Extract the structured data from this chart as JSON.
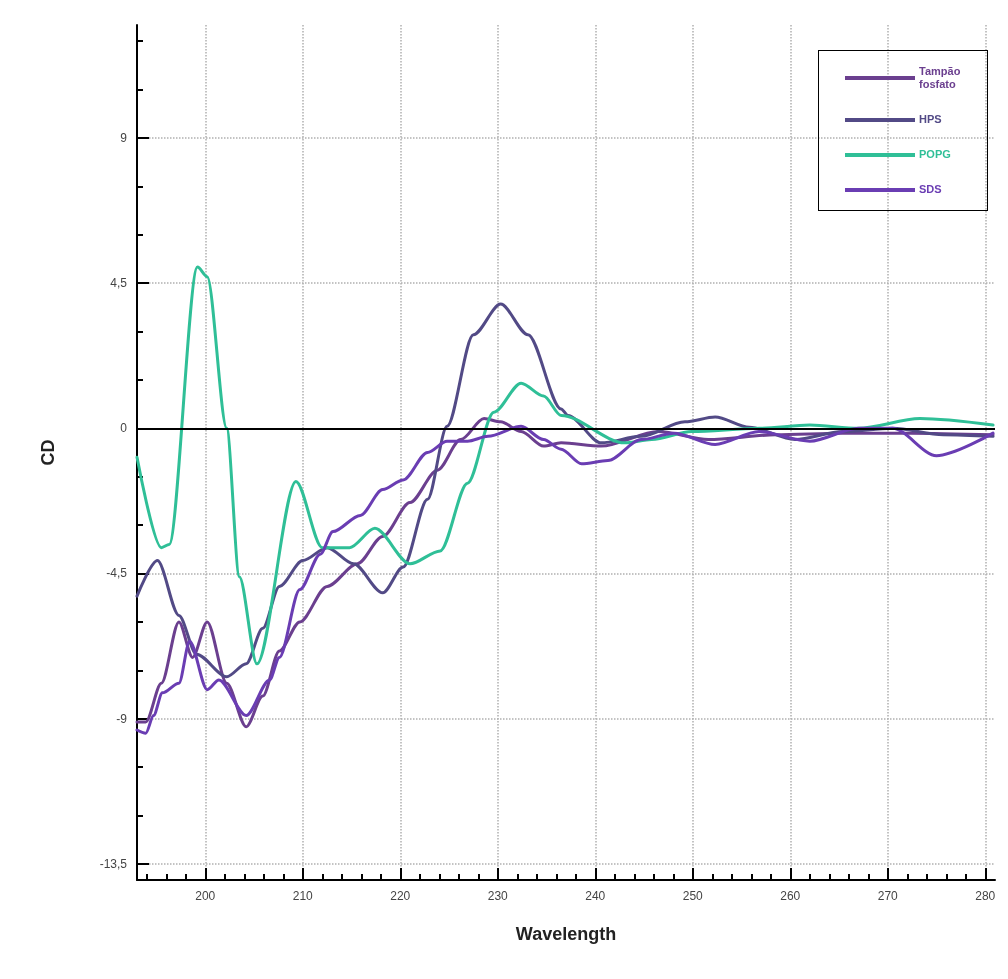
{
  "chart_data": {
    "type": "line",
    "xlabel": "Wavelength",
    "ylabel": "CD",
    "xlim": [
      193,
      281
    ],
    "ylim": [
      -14,
      12.5
    ],
    "xticks": [
      {
        "value": 194,
        "label": null
      },
      {
        "value": 196,
        "label": null
      },
      {
        "value": 198,
        "label": null
      },
      200,
      {
        "value": 202,
        "label": null
      },
      {
        "value": 204,
        "label": null
      },
      {
        "value": 206,
        "label": null
      },
      {
        "value": 208,
        "label": null
      },
      210,
      {
        "value": 212,
        "label": null
      },
      {
        "value": 214,
        "label": null
      },
      {
        "value": 216,
        "label": null
      },
      {
        "value": 218,
        "label": null
      },
      220,
      {
        "value": 222,
        "label": null
      },
      {
        "value": 224,
        "label": null
      },
      {
        "value": 226,
        "label": null
      },
      {
        "value": 228,
        "label": null
      },
      230,
      {
        "value": 232,
        "label": null
      },
      {
        "value": 234,
        "label": null
      },
      {
        "value": 236,
        "label": null
      },
      {
        "value": 238,
        "label": null
      },
      240,
      {
        "value": 242,
        "label": null
      },
      {
        "value": 244,
        "label": null
      },
      {
        "value": 246,
        "label": null
      },
      {
        "value": 248,
        "label": null
      },
      250,
      {
        "value": 252,
        "label": null
      },
      {
        "value": 254,
        "label": null
      },
      {
        "value": 256,
        "label": null
      },
      {
        "value": 258,
        "label": null
      },
      260,
      {
        "value": 262,
        "label": null
      },
      {
        "value": 264,
        "label": null
      },
      {
        "value": 266,
        "label": null
      },
      {
        "value": 268,
        "label": null
      },
      270,
      {
        "value": 272,
        "label": null
      },
      {
        "value": 274,
        "label": null
      },
      {
        "value": 276,
        "label": null
      },
      {
        "value": 278,
        "label": null
      },
      280
    ],
    "yticks": [
      {
        "value": -13.5,
        "label": "-13,5"
      },
      {
        "value": -12,
        "label": null
      },
      {
        "value": -10.5,
        "label": null
      },
      -9,
      {
        "value": -7.5,
        "label": null
      },
      {
        "value": -6,
        "label": null
      },
      {
        "value": -4.5,
        "label": "-4,5"
      },
      {
        "value": -3,
        "label": null
      },
      {
        "value": -1.5,
        "label": null
      },
      0,
      {
        "value": 1.5,
        "label": null
      },
      {
        "value": 3,
        "label": null
      },
      {
        "value": 4.5,
        "label": "4,5"
      },
      {
        "value": 6,
        "label": null
      },
      {
        "value": 7.5,
        "label": null
      },
      9,
      {
        "value": 10.5,
        "label": null
      },
      {
        "value": 12,
        "label": null
      }
    ],
    "grid": true,
    "legend": "top right",
    "marker": "none",
    "line_style": "solid",
    "ref_lines": [
      {
        "axis": "y",
        "value": 0,
        "color": "#000000"
      }
    ],
    "series": [
      {
        "name": "Tampão fosfato",
        "color": "#6b3f8f",
        "x": [
          193,
          193.9,
          195.5,
          197.3,
          198.7,
          200.2,
          202.2,
          204.2,
          205.9,
          207.6,
          209.7,
          212.5,
          215.6,
          218.2,
          221,
          223.8,
          226.2,
          228.6,
          230.3,
          232.4,
          234.7,
          236.5,
          240.6,
          246.5,
          251.6,
          258.5,
          265.4,
          272.3,
          280.8
        ],
        "values": [
          -9.1,
          -9.1,
          -7.9,
          -6.0,
          -7.1,
          -6.0,
          -7.9,
          -9.25,
          -8.3,
          -6.9,
          -6.0,
          -4.9,
          -4.2,
          -3.35,
          -2.3,
          -1.3,
          -0.35,
          0.3,
          0.2,
          -0.1,
          -0.55,
          -0.45,
          -0.55,
          -0.1,
          -0.35,
          -0.2,
          -0.15,
          -0.15,
          -0.2
        ]
      },
      {
        "name": "HPS",
        "color": "#524a86",
        "x": [
          193,
          195.1,
          197.3,
          199.1,
          202.2,
          204.2,
          205.9,
          207.6,
          210,
          212.5,
          215.2,
          218.2,
          220.3,
          222.8,
          224.8,
          227.5,
          230.3,
          233.1,
          236.5,
          237.2,
          240.6,
          244.7,
          249.2,
          252.3,
          255.8,
          260.5,
          265.4,
          270.5,
          275.7,
          280.8
        ],
        "values": [
          -5.2,
          -4.1,
          -5.8,
          -7.0,
          -7.7,
          -7.3,
          -6.2,
          -4.9,
          -4.1,
          -3.7,
          -4.2,
          -5.1,
          -4.3,
          -2.2,
          0.06,
          2.9,
          3.85,
          2.9,
          0.6,
          0.4,
          -0.45,
          -0.25,
          0.2,
          0.35,
          0.03,
          -0.35,
          -0.1,
          0,
          -0.2,
          -0.25
        ]
      },
      {
        "name": "POPG",
        "color": "#2fbf97",
        "x": [
          193,
          195.5,
          196.3,
          199.2,
          200.2,
          202.2,
          203.5,
          205.3,
          209.3,
          212,
          214.8,
          217.4,
          221,
          224.1,
          226.9,
          229.6,
          232.4,
          234.7,
          236.5,
          243,
          245.8,
          249.9,
          256.8,
          262,
          267,
          273.3,
          280.8
        ],
        "values": [
          -0.9,
          -3.7,
          -3.6,
          5.0,
          4.7,
          0,
          -4.6,
          -7.3,
          -1.65,
          -3.7,
          -3.7,
          -3.1,
          -4.2,
          -3.8,
          -1.7,
          0.5,
          1.4,
          1.0,
          0.4,
          -0.45,
          -0.35,
          -0.1,
          0,
          0.1,
          0,
          0.3,
          0.1
        ]
      },
      {
        "name": "SDS",
        "color": "#6a3db3",
        "x": [
          193,
          193.9,
          194.7,
          195.6,
          197.3,
          198.4,
          200.2,
          201.4,
          204.2,
          206.6,
          207.6,
          209.7,
          211.8,
          213.1,
          215.9,
          218.2,
          220.3,
          222.8,
          224.8,
          226.9,
          229,
          232.4,
          234.7,
          236.5,
          238.6,
          241.3,
          244.7,
          248.1,
          252.3,
          256.8,
          262,
          267,
          270.5,
          275,
          280.8
        ],
        "values": [
          -9.35,
          -9.45,
          -8.9,
          -8.2,
          -7.9,
          -6.6,
          -8.1,
          -7.8,
          -8.9,
          -7.8,
          -7.1,
          -5.0,
          -3.9,
          -3.2,
          -2.7,
          -1.9,
          -1.6,
          -0.75,
          -0.4,
          -0.4,
          -0.25,
          0.06,
          -0.35,
          -0.65,
          -1.1,
          -1.0,
          -0.35,
          -0.15,
          -0.5,
          -0.1,
          -0.4,
          0,
          0,
          -0.85,
          -0.15
        ]
      }
    ]
  }
}
